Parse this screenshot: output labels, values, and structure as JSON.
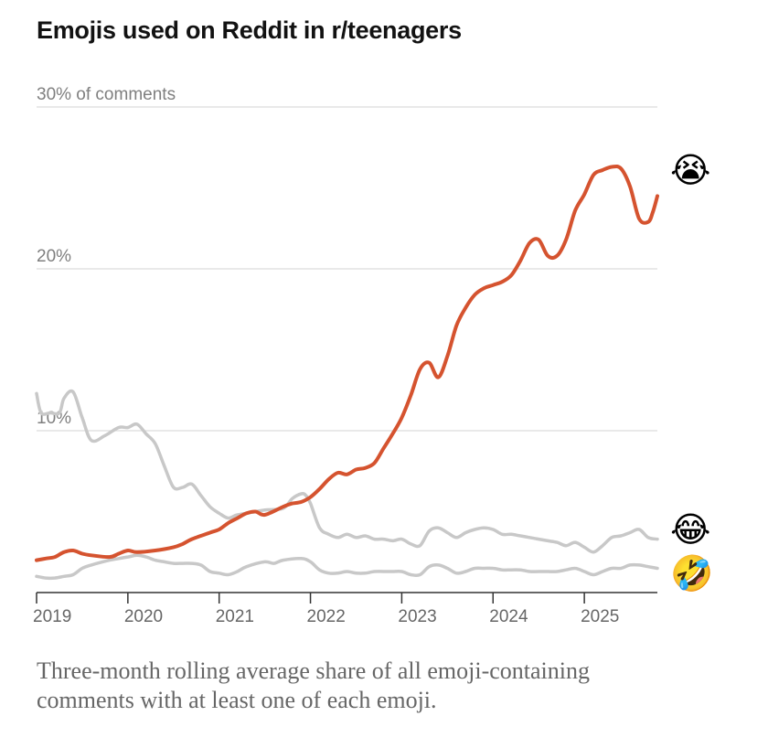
{
  "title": "Emojis used on Reddit in r/teenagers",
  "caption": "Three-month rolling average share of all emoji-containing comments with at least one of each emoji.",
  "chart_data": {
    "type": "line",
    "title": "Emojis used on Reddit in r/teenagers",
    "ylabel": "30% of comments",
    "ylim": [
      0,
      30
    ],
    "xlim": [
      2019,
      2025.8
    ],
    "y_ticks": [
      {
        "value": 10,
        "label": "10%"
      },
      {
        "value": 20,
        "label": "20%"
      },
      {
        "value": 30,
        "label": "30% of comments"
      }
    ],
    "x_ticks": [
      {
        "value": 2019,
        "label": "2019"
      },
      {
        "value": 2020,
        "label": "2020"
      },
      {
        "value": 2021,
        "label": "2021"
      },
      {
        "value": 2022,
        "label": "2022"
      },
      {
        "value": 2023,
        "label": "2023"
      },
      {
        "value": 2024,
        "label": "2024"
      },
      {
        "value": 2025,
        "label": "2025"
      }
    ],
    "grid": true,
    "series": [
      {
        "name": "😭",
        "color": "#d5532f",
        "x": [
          2019.0,
          2019.1,
          2019.2,
          2019.3,
          2019.4,
          2019.5,
          2019.6,
          2019.8,
          2019.9,
          2020.0,
          2020.1,
          2020.3,
          2020.5,
          2020.6,
          2020.7,
          2020.9,
          2021.0,
          2021.1,
          2021.2,
          2021.3,
          2021.4,
          2021.5,
          2021.7,
          2021.8,
          2021.9,
          2022.0,
          2022.1,
          2022.2,
          2022.3,
          2022.4,
          2022.5,
          2022.6,
          2022.7,
          2022.8,
          2022.9,
          2023.0,
          2023.1,
          2023.2,
          2023.3,
          2023.4,
          2023.5,
          2023.6,
          2023.7,
          2023.8,
          2023.9,
          2024.0,
          2024.1,
          2024.2,
          2024.3,
          2024.4,
          2024.5,
          2024.6,
          2024.7,
          2024.8,
          2024.9,
          2025.0,
          2025.1,
          2025.2,
          2025.3,
          2025.4,
          2025.5,
          2025.6,
          2025.7,
          2025.75,
          2025.8
        ],
        "values": [
          2.0,
          2.1,
          2.2,
          2.5,
          2.6,
          2.4,
          2.3,
          2.2,
          2.4,
          2.6,
          2.5,
          2.6,
          2.8,
          3.0,
          3.3,
          3.7,
          3.9,
          4.3,
          4.6,
          4.9,
          5.0,
          4.8,
          5.3,
          5.5,
          5.6,
          5.9,
          6.4,
          7.0,
          7.4,
          7.3,
          7.6,
          7.7,
          8.0,
          8.9,
          9.8,
          10.8,
          12.2,
          13.8,
          14.2,
          13.3,
          14.6,
          16.5,
          17.6,
          18.4,
          18.8,
          19.0,
          19.2,
          19.6,
          20.5,
          21.6,
          21.8,
          20.8,
          20.8,
          21.8,
          23.6,
          24.6,
          25.8,
          26.1,
          26.3,
          26.2,
          25.1,
          23.1,
          22.9,
          23.5,
          24.5
        ]
      },
      {
        "name": "😂",
        "color": "#c8c8c8",
        "x": [
          2019.0,
          2019.05,
          2019.15,
          2019.25,
          2019.3,
          2019.4,
          2019.5,
          2019.6,
          2019.75,
          2019.9,
          2020.0,
          2020.1,
          2020.2,
          2020.3,
          2020.4,
          2020.5,
          2020.6,
          2020.7,
          2020.8,
          2020.9,
          2021.0,
          2021.1,
          2021.2,
          2021.4,
          2021.5,
          2021.7,
          2021.8,
          2021.9,
          2021.95,
          2022.0,
          2022.1,
          2022.2,
          2022.3,
          2022.4,
          2022.5,
          2022.6,
          2022.7,
          2022.8,
          2022.9,
          2023.0,
          2023.1,
          2023.2,
          2023.3,
          2023.4,
          2023.5,
          2023.6,
          2023.7,
          2023.8,
          2023.9,
          2024.0,
          2024.1,
          2024.2,
          2024.3,
          2024.4,
          2024.5,
          2024.6,
          2024.7,
          2024.8,
          2024.9,
          2025.0,
          2025.1,
          2025.2,
          2025.3,
          2025.4,
          2025.5,
          2025.6,
          2025.7,
          2025.8
        ],
        "values": [
          12.3,
          11.1,
          11.1,
          11.1,
          12.0,
          12.4,
          10.8,
          9.4,
          9.7,
          10.2,
          10.2,
          10.4,
          9.8,
          9.2,
          7.8,
          6.5,
          6.5,
          6.7,
          6.0,
          5.3,
          4.9,
          4.6,
          4.8,
          5.0,
          5.1,
          5.2,
          5.8,
          6.1,
          6.0,
          5.5,
          4.0,
          3.6,
          3.4,
          3.6,
          3.4,
          3.5,
          3.3,
          3.3,
          3.2,
          3.3,
          3.0,
          2.9,
          3.8,
          4.0,
          3.7,
          3.4,
          3.7,
          3.9,
          4.0,
          3.9,
          3.6,
          3.6,
          3.5,
          3.4,
          3.3,
          3.2,
          3.1,
          2.9,
          3.1,
          2.8,
          2.5,
          2.9,
          3.4,
          3.5,
          3.7,
          3.9,
          3.4,
          3.3
        ]
      },
      {
        "name": "🤣",
        "color": "#c8c8c8",
        "x": [
          2019.0,
          2019.1,
          2019.2,
          2019.3,
          2019.4,
          2019.5,
          2019.6,
          2019.8,
          2019.9,
          2020.0,
          2020.1,
          2020.2,
          2020.3,
          2020.4,
          2020.5,
          2020.6,
          2020.7,
          2020.8,
          2020.9,
          2021.0,
          2021.1,
          2021.2,
          2021.3,
          2021.5,
          2021.6,
          2021.7,
          2021.9,
          2022.0,
          2022.1,
          2022.2,
          2022.3,
          2022.4,
          2022.5,
          2022.6,
          2022.7,
          2022.8,
          2022.9,
          2023.0,
          2023.1,
          2023.2,
          2023.3,
          2023.4,
          2023.5,
          2023.6,
          2023.7,
          2023.8,
          2023.9,
          2024.0,
          2024.1,
          2024.2,
          2024.3,
          2024.4,
          2024.5,
          2024.6,
          2024.7,
          2024.8,
          2024.9,
          2025.0,
          2025.1,
          2025.2,
          2025.3,
          2025.4,
          2025.5,
          2025.6,
          2025.7,
          2025.8
        ],
        "values": [
          1.0,
          0.9,
          0.9,
          1.0,
          1.1,
          1.5,
          1.7,
          2.0,
          2.1,
          2.2,
          2.3,
          2.2,
          2.0,
          1.9,
          1.8,
          1.8,
          1.8,
          1.7,
          1.3,
          1.2,
          1.1,
          1.3,
          1.6,
          1.9,
          1.8,
          2.0,
          2.1,
          1.9,
          1.4,
          1.2,
          1.2,
          1.3,
          1.2,
          1.2,
          1.3,
          1.3,
          1.3,
          1.3,
          1.1,
          1.1,
          1.6,
          1.7,
          1.5,
          1.2,
          1.3,
          1.5,
          1.5,
          1.5,
          1.4,
          1.4,
          1.4,
          1.3,
          1.3,
          1.3,
          1.3,
          1.4,
          1.5,
          1.3,
          1.1,
          1.3,
          1.5,
          1.5,
          1.7,
          1.7,
          1.6,
          1.5
        ]
      }
    ]
  }
}
